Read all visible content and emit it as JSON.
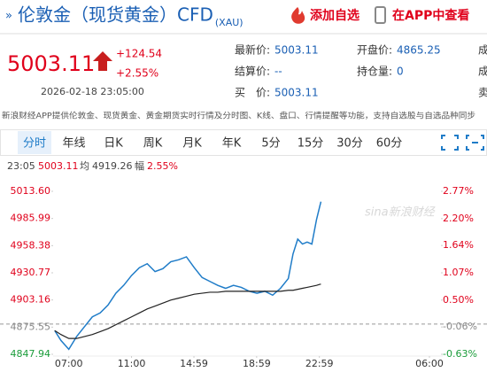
{
  "header": {
    "arrow": "»",
    "title": "伦敦金（现货黄金）CFD",
    "code": "(XAU)",
    "add_watchlist": "添加自选",
    "open_app": "在APP中查看"
  },
  "quote": {
    "price": "5003.11",
    "change": "+124.54",
    "change_pct": "+2.55%",
    "time": "2026-02-18 23:05:00",
    "fields": [
      {
        "label": "最新价:",
        "value": "5003.11"
      },
      {
        "label": "开盘价:",
        "value": "4865.25"
      },
      {
        "label": "成"
      },
      {
        "label": "结算价:",
        "value": "--"
      },
      {
        "label": "持仓量:",
        "value": "0"
      },
      {
        "label": "成"
      },
      {
        "label": "买　价:",
        "value": "5003.11"
      },
      {
        "label": "卖"
      }
    ]
  },
  "notice": "新浪财经APP提供伦敦金、现货黄金、黄金期货实时行情及分时图、K线、盘口、行情提醒等功能，支持自选股与自选品种同步",
  "tabs": [
    "分时",
    "年线",
    "日K",
    "周K",
    "月K",
    "年K",
    "5分",
    "15分",
    "30分",
    "60分"
  ],
  "info": {
    "time": "23:05",
    "price": "5003.11",
    "avg_label": "均",
    "avg": "4919.26",
    "range_label": "幅",
    "range": "2.55%"
  },
  "chart_data": {
    "type": "line",
    "watermark": "sina新浪财经",
    "x": [
      0.1,
      0.5,
      1,
      1.5,
      2,
      2.5,
      3,
      3.5,
      4,
      4.5,
      5,
      5.5,
      6,
      6.5,
      7,
      7.5,
      8,
      8.5,
      9,
      9.5,
      10,
      10.5,
      11,
      11.5,
      12,
      12.5,
      13,
      13.5,
      14,
      14.5,
      15,
      15.3,
      15.6,
      15.9,
      16.2,
      16.5,
      16.8,
      17,
      17.08
    ],
    "series": [
      {
        "color": "#1f7cc8",
        "values": [
          4872,
          4862,
          4853,
          4866,
          4876,
          4886,
          4890,
          4898,
          4910,
          4918,
          4928,
          4936,
          4940,
          4932,
          4935,
          4942,
          4944,
          4947,
          4936,
          4926,
          4922,
          4918,
          4915,
          4918,
          4916,
          4912,
          4910,
          4912,
          4908,
          4915,
          4925,
          4950,
          4965,
          4960,
          4962,
          4960,
          4985,
          4998,
          5003.11
        ]
      },
      {
        "color": "#222222",
        "values": [
          4872,
          4868,
          4864,
          4864,
          4866,
          4868,
          4871,
          4874,
          4878,
          4882,
          4886,
          4890,
          4894,
          4897,
          4900,
          4903,
          4905,
          4907,
          4909,
          4910,
          4911,
          4911,
          4912,
          4912,
          4912,
          4912,
          4912,
          4912,
          4912,
          4912,
          4913,
          4913,
          4914,
          4915,
          4916,
          4917,
          4918,
          4919,
          4919.26
        ]
      }
    ],
    "xlim": [
      0,
      24
    ],
    "xticks": [
      {
        "value": 1,
        "label": "07:00"
      },
      {
        "value": 5,
        "label": "11:00"
      },
      {
        "value": 8.98,
        "label": "14:59"
      },
      {
        "value": 12.98,
        "label": "18:59"
      },
      {
        "value": 16.98,
        "label": "22:59"
      },
      {
        "value": 24,
        "label": "06:00"
      }
    ],
    "ylim": [
      4847.94,
      5013.6
    ],
    "yticks": [
      {
        "value": 5013.6,
        "label": "5013.60"
      },
      4985.99,
      4958.38,
      4930.77,
      4903.16,
      4875.55,
      4847.94
    ],
    "y2lim": [
      -0.63,
      2.77
    ],
    "y2ticks": [
      {
        "value": 2.77,
        "label": "2.77%"
      },
      {
        "value": 2.2,
        "label": "2.20%"
      },
      {
        "value": 1.64,
        "label": "1.64%"
      },
      {
        "value": 1.07,
        "label": "1.07%"
      },
      {
        "value": 0.5,
        "label": "0.50%"
      },
      {
        "value": -0.06,
        "label": "-0.06%"
      },
      {
        "value": -0.63,
        "label": "-0.63%"
      }
    ]
  }
}
